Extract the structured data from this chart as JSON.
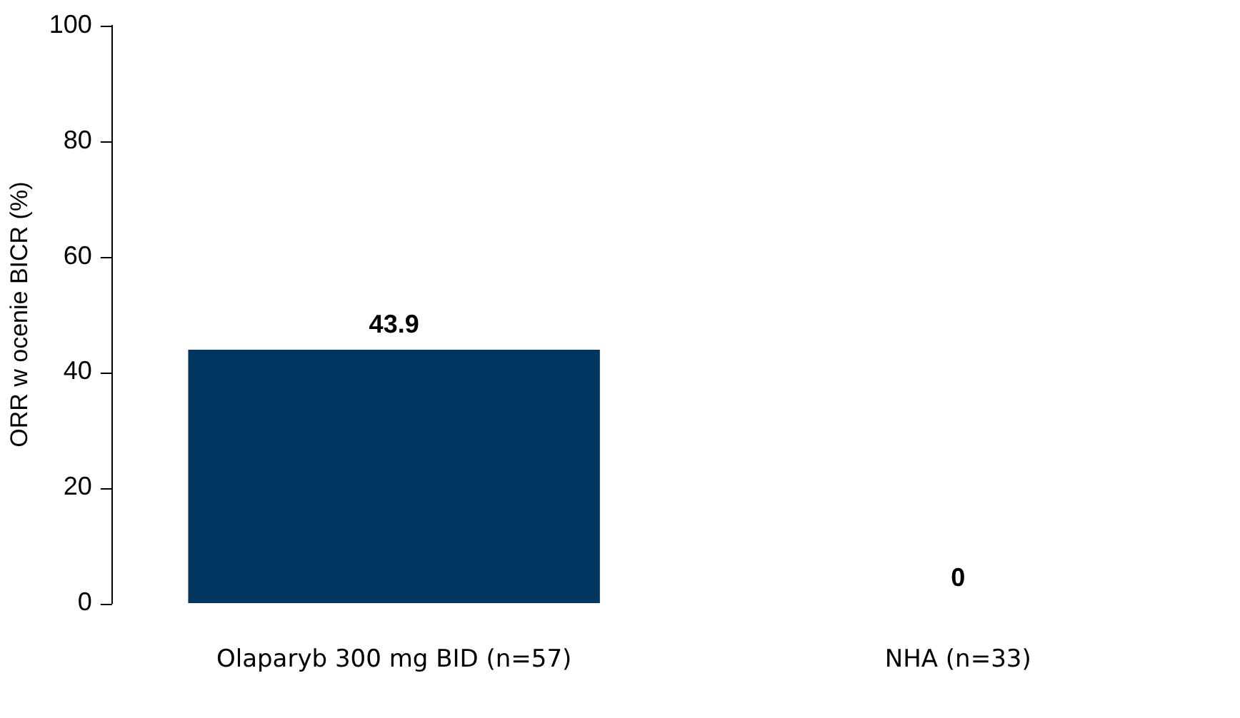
{
  "chart_data": {
    "type": "bar",
    "ylabel": "ORR w ocenie BICR (%)",
    "categories": [
      "Olaparyb 300 mg BID (n=57)",
      "NHA (n=33)"
    ],
    "values": [
      43.9,
      0
    ],
    "color": "#003660",
    "ylim": [
      0,
      100
    ],
    "yticks": [
      0,
      20,
      40,
      60,
      80,
      100
    ],
    "grid": false,
    "legend": false,
    "data_labels": true
  }
}
